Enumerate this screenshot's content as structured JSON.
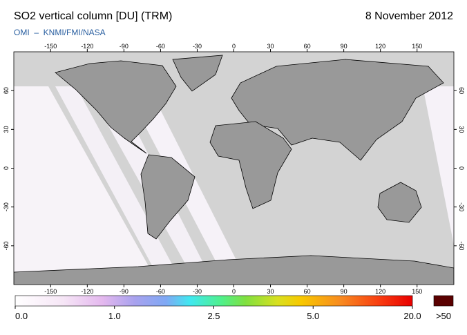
{
  "header": {
    "title": "SO2 vertical column [DU] (TRM)",
    "date": "8 November 2012",
    "source": "OMI  –  KNMI/FMI/NASA"
  },
  "map": {
    "lon_ticks": [
      -150,
      -120,
      -90,
      -60,
      -30,
      0,
      30,
      60,
      90,
      120,
      150
    ],
    "lat_ticks": [
      60,
      30,
      0,
      -30,
      -60
    ]
  },
  "colorbar": {
    "ticks": [
      {
        "value": 0,
        "label": "0.0"
      },
      {
        "value": 1,
        "label": "1.0"
      },
      {
        "value": 2.5,
        "label": "2.5"
      },
      {
        "value": 5,
        "label": "5.0"
      },
      {
        "value": 20,
        "label": "20.0"
      }
    ],
    "overflow_label": ">50"
  }
}
